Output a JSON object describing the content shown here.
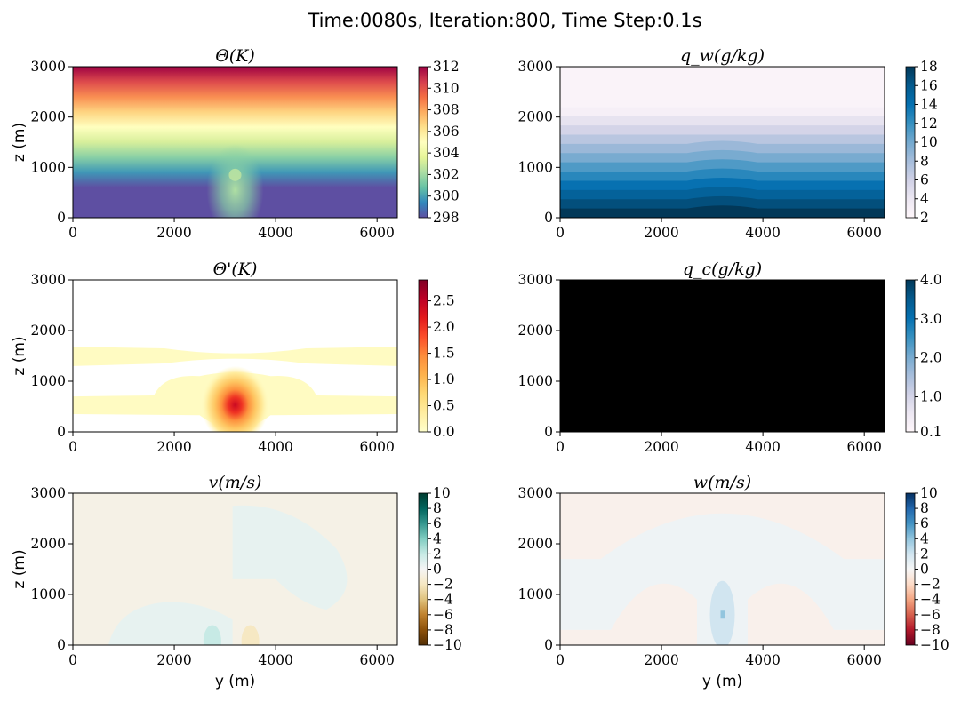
{
  "figure": {
    "title": "Time:0080s, Iteration:800, Time Step:0.1s"
  },
  "chart_data": [
    {
      "type": "heatmap",
      "title": "Θ(K)",
      "xlabel": "",
      "ylabel": "z (m)",
      "xlim": [
        0,
        6400
      ],
      "ylim": [
        0,
        3000
      ],
      "x_ticks": [
        "0",
        "2000",
        "4000",
        "6000"
      ],
      "y_ticks": [
        "0",
        "1000",
        "2000",
        "3000"
      ],
      "colorbar": {
        "cmap": "Spectral_r",
        "range": [
          298,
          312
        ],
        "ticks": [
          "298",
          "300",
          "302",
          "304",
          "306",
          "308",
          "310",
          "312"
        ],
        "colors": [
          "#5e4fa2",
          "#3288bd",
          "#66c2a5",
          "#abdda4",
          "#e6f598",
          "#ffffbf",
          "#fee08b",
          "#fdae61",
          "#f46d43",
          "#d53e4f",
          "#9e0142"
        ]
      },
      "features": {
        "bottom_value": 298,
        "top_value": 312,
        "thermal_center_y": 3200,
        "thermal_center_z": 800,
        "thermal_value": 301.5
      }
    },
    {
      "type": "heatmap",
      "title": "q_w(g/kg)",
      "xlabel": "",
      "ylabel": "",
      "xlim": [
        0,
        6400
      ],
      "ylim": [
        0,
        3000
      ],
      "x_ticks": [
        "0",
        "2000",
        "4000",
        "6000"
      ],
      "y_ticks": [
        "0",
        "1000",
        "2000",
        "3000"
      ],
      "colorbar": {
        "cmap": "PuBu",
        "range": [
          2,
          18
        ],
        "ticks": [
          "2",
          "4",
          "6",
          "8",
          "10",
          "12",
          "14",
          "16",
          "18"
        ],
        "colors": [
          "#fff7fb",
          "#ece7f2",
          "#d0d1e6",
          "#a6bddb",
          "#74a9cf",
          "#3690c0",
          "#0570b0",
          "#045a8d",
          "#023858"
        ]
      },
      "features": {
        "surface_value": 18,
        "dry_above_z": 2200,
        "dry_value": 2.5
      }
    },
    {
      "type": "heatmap",
      "title": "Θ'(K)",
      "xlabel": "",
      "ylabel": "z (m)",
      "xlim": [
        0,
        6400
      ],
      "ylim": [
        0,
        3000
      ],
      "x_ticks": [
        "0",
        "2000",
        "4000",
        "6000"
      ],
      "y_ticks": [
        "0",
        "1000",
        "2000",
        "3000"
      ],
      "colorbar": {
        "cmap": "YlOrRd",
        "range": [
          0,
          2.9
        ],
        "ticks": [
          "0.0",
          "0.5",
          "1.0",
          "1.5",
          "2.0",
          "2.5"
        ],
        "colors": [
          "#ffffcc",
          "#ffeda0",
          "#fed976",
          "#feb24c",
          "#fd8d3c",
          "#fc4e2a",
          "#e31a1c",
          "#bd0026",
          "#800026"
        ]
      },
      "features": {
        "max_value": 2.4,
        "max_y": 3200,
        "max_z": 530
      }
    },
    {
      "type": "heatmap",
      "title": "q_c(g/kg)",
      "xlabel": "",
      "ylabel": "",
      "xlim": [
        0,
        6400
      ],
      "ylim": [
        0,
        3000
      ],
      "x_ticks": [
        "0",
        "2000",
        "4000",
        "6000"
      ],
      "y_ticks": [
        "0",
        "1000",
        "2000",
        "3000"
      ],
      "colorbar": {
        "cmap": "PuBu",
        "range": [
          0.1,
          4.0
        ],
        "ticks": [
          "0.1",
          "1.0",
          "2.0",
          "3.0",
          "4.0"
        ],
        "colors": [
          "#fff7fb",
          "#ece7f2",
          "#d0d1e6",
          "#a6bddb",
          "#74a9cf",
          "#3690c0",
          "#0570b0",
          "#045a8d",
          "#023858"
        ]
      },
      "features": {
        "field_fill": "#000000"
      }
    },
    {
      "type": "heatmap",
      "title": "v(m/s)",
      "xlabel": "y (m)",
      "ylabel": "z (m)",
      "xlim": [
        0,
        6400
      ],
      "ylim": [
        0,
        3000
      ],
      "x_ticks": [
        "0",
        "2000",
        "4000",
        "6000"
      ],
      "y_ticks": [
        "0",
        "1000",
        "2000",
        "3000"
      ],
      "colorbar": {
        "cmap": "BrBG",
        "range": [
          -10,
          10
        ],
        "ticks": [
          "−10",
          "−8",
          "−6",
          "−4",
          "−2",
          "0",
          "2",
          "4",
          "6",
          "8",
          "10"
        ],
        "colors": [
          "#543005",
          "#8c510a",
          "#bf812d",
          "#dfc27d",
          "#f6e8c3",
          "#f5f5f5",
          "#c7eae5",
          "#80cdc1",
          "#35978f",
          "#01665e",
          "#003c30"
        ]
      },
      "features": {
        "background_value": -0.6,
        "positive_lobe_value": 0.6
      }
    },
    {
      "type": "heatmap",
      "title": "w(m/s)",
      "xlabel": "y (m)",
      "ylabel": "",
      "xlim": [
        0,
        6400
      ],
      "ylim": [
        0,
        3000
      ],
      "x_ticks": [
        "0",
        "2000",
        "4000",
        "6000"
      ],
      "y_ticks": [
        "0",
        "1000",
        "2000",
        "3000"
      ],
      "colorbar": {
        "cmap": "RdBu",
        "range": [
          -10,
          10
        ],
        "ticks": [
          "−10",
          "−8",
          "−6",
          "−4",
          "−2",
          "0",
          "2",
          "4",
          "6",
          "8",
          "10"
        ],
        "colors": [
          "#67001f",
          "#b2182b",
          "#d6604d",
          "#f4a582",
          "#fddbc7",
          "#f7f7f7",
          "#d1e5f0",
          "#92c5de",
          "#4393c3",
          "#2166ac",
          "#053061"
        ]
      },
      "features": {
        "background_value": -0.5,
        "dome_value": 0.5,
        "updraft_value": 2.0,
        "updraft_y": 3200,
        "updraft_z": 600
      }
    }
  ]
}
